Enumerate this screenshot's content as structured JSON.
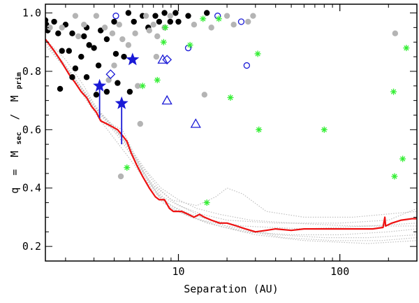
{
  "chart_data": {
    "type": "scatter",
    "title": "",
    "xlabel": "Separation (AU)",
    "ylabel": "q = M_sec / M_prim",
    "ylabel_parts": {
      "q": "q",
      "equals": "=",
      "num": "M",
      "num_sub": "sec",
      "slash": "/",
      "den": "M",
      "den_sub": "prim"
    },
    "x_scale": "log",
    "xlim": [
      1.5,
      300
    ],
    "ylim": [
      0.15,
      1.03
    ],
    "x_tick_labels": [
      {
        "value": 10,
        "label": "10"
      },
      {
        "value": 100,
        "label": "100"
      }
    ],
    "y_tick_labels": [
      {
        "value": 0.2,
        "label": "0.2"
      },
      {
        "value": 0.4,
        "label": "0.4"
      },
      {
        "value": 0.6,
        "label": "0.6"
      },
      {
        "value": 0.8,
        "label": "0.8"
      },
      {
        "value": 1.0,
        "label": "1.0"
      }
    ],
    "colors": {
      "black_points": "#000000",
      "gray_points": "#b4b4b4",
      "green_stars": "#33ee33",
      "blue": "#1a1ad6",
      "red_curve": "#ee1111",
      "gray_curves": "#c0c0c0"
    },
    "series": [
      {
        "name": "black-filled-circles",
        "marker": "filled-circle",
        "color": "black_points",
        "points": [
          [
            1.5,
            0.975
          ],
          [
            1.52,
            0.96
          ],
          [
            1.55,
            0.94
          ],
          [
            1.8,
            0.93
          ],
          [
            1.9,
            0.87
          ],
          [
            2.0,
            0.96
          ],
          [
            2.1,
            0.87
          ],
          [
            2.2,
            0.93
          ],
          [
            2.3,
            0.81
          ],
          [
            2.5,
            0.85
          ],
          [
            2.6,
            0.92
          ],
          [
            2.7,
            0.95
          ],
          [
            2.8,
            0.89
          ],
          [
            3.0,
            0.88
          ],
          [
            3.2,
            0.82
          ],
          [
            3.3,
            0.94
          ],
          [
            3.6,
            0.91
          ],
          [
            4.0,
            0.97
          ],
          [
            4.2,
            0.76
          ],
          [
            4.6,
            0.85
          ],
          [
            4.9,
            1.0
          ],
          [
            5.3,
            0.97
          ],
          [
            6.0,
            0.99
          ],
          [
            6.5,
            0.95
          ],
          [
            7.2,
            0.99
          ],
          [
            7.6,
            0.97
          ],
          [
            8.2,
            1.0
          ],
          [
            8.9,
            0.97
          ],
          [
            9.6,
            1.0
          ],
          [
            10.0,
            0.97
          ],
          [
            11.5,
            0.99
          ],
          [
            15.0,
            1.0
          ],
          [
            1.85,
            0.74
          ],
          [
            2.2,
            0.78
          ],
          [
            3.1,
            0.72
          ],
          [
            3.6,
            0.73
          ],
          [
            4.1,
            0.86
          ],
          [
            5.0,
            0.73
          ],
          [
            1.7,
            0.97
          ],
          [
            2.7,
            0.78
          ]
        ]
      },
      {
        "name": "gray-filled-circles",
        "marker": "filled-circle",
        "color": "gray_points",
        "points": [
          [
            1.6,
            0.95
          ],
          [
            1.9,
            0.95
          ],
          [
            2.3,
            0.99
          ],
          [
            2.6,
            0.96
          ],
          [
            3.1,
            0.99
          ],
          [
            3.5,
            0.95
          ],
          [
            3.9,
            0.93
          ],
          [
            4.3,
            0.96
          ],
          [
            4.5,
            0.91
          ],
          [
            4.9,
            0.89
          ],
          [
            5.4,
            0.93
          ],
          [
            5.6,
            0.75
          ],
          [
            6.3,
            0.99
          ],
          [
            6.6,
            0.94
          ],
          [
            7.0,
            0.96
          ],
          [
            7.4,
            0.92
          ],
          [
            8.2,
            0.95
          ],
          [
            8.9,
            0.99
          ],
          [
            12.5,
            0.96
          ],
          [
            14.5,
            0.72
          ],
          [
            16.0,
            0.95
          ],
          [
            20.0,
            0.99
          ],
          [
            22.0,
            0.96
          ],
          [
            27.0,
            0.97
          ],
          [
            29.0,
            0.99
          ],
          [
            3.7,
            0.77
          ],
          [
            4.4,
            0.44
          ],
          [
            5.8,
            0.62
          ],
          [
            7.3,
            0.85
          ],
          [
            220.0,
            0.93
          ],
          [
            4.0,
            0.82
          ],
          [
            2.4,
            0.92
          ]
        ]
      },
      {
        "name": "blue-open-circles",
        "marker": "open-circle",
        "color": "blue",
        "points": [
          [
            4.1,
            0.99
          ],
          [
            11.5,
            0.88
          ],
          [
            17.5,
            0.99
          ],
          [
            24.5,
            0.97
          ],
          [
            26.5,
            0.82
          ]
        ]
      },
      {
        "name": "blue-open-diamonds",
        "marker": "open-diamond",
        "color": "blue",
        "points": [
          [
            3.8,
            0.79
          ],
          [
            8.5,
            0.84
          ]
        ]
      },
      {
        "name": "blue-open-triangles",
        "marker": "open-triangle",
        "color": "blue",
        "points": [
          [
            8.0,
            0.84
          ],
          [
            8.5,
            0.7
          ],
          [
            12.8,
            0.62
          ]
        ]
      },
      {
        "name": "green-asterisks",
        "marker": "asterisk",
        "color": "green_stars",
        "points": [
          [
            14.2,
            0.98
          ],
          [
            17.8,
            0.98
          ],
          [
            11.8,
            0.89
          ],
          [
            8.1,
            0.9
          ],
          [
            7.4,
            0.77
          ],
          [
            6.0,
            0.75
          ],
          [
            8.3,
            0.95
          ],
          [
            31.0,
            0.86
          ],
          [
            21.0,
            0.71
          ],
          [
            31.5,
            0.6
          ],
          [
            80.0,
            0.6
          ],
          [
            15.0,
            0.35
          ],
          [
            4.8,
            0.47
          ],
          [
            215.0,
            0.73
          ],
          [
            258.0,
            0.88
          ],
          [
            245.0,
            0.5
          ],
          [
            218.0,
            0.44
          ]
        ]
      },
      {
        "name": "blue-filled-stars",
        "marker": "filled-star",
        "color": "blue",
        "points": [
          [
            3.25,
            0.75
          ],
          [
            4.45,
            0.69
          ],
          [
            5.2,
            0.84
          ]
        ]
      }
    ],
    "error_bars": [
      {
        "x": 3.25,
        "y_low": 0.64,
        "y_high": 0.75
      },
      {
        "x": 4.45,
        "y_low": 0.55,
        "y_high": 0.69
      }
    ],
    "red_curve": [
      [
        1.5,
        0.91
      ],
      [
        1.7,
        0.87
      ],
      [
        1.9,
        0.83
      ],
      [
        2.1,
        0.79
      ],
      [
        2.3,
        0.76
      ],
      [
        2.5,
        0.73
      ],
      [
        2.7,
        0.71
      ],
      [
        2.9,
        0.68
      ],
      [
        3.1,
        0.66
      ],
      [
        3.3,
        0.63
      ],
      [
        3.6,
        0.62
      ],
      [
        3.9,
        0.61
      ],
      [
        4.2,
        0.6
      ],
      [
        4.5,
        0.58
      ],
      [
        4.8,
        0.56
      ],
      [
        5.1,
        0.52
      ],
      [
        5.5,
        0.48
      ],
      [
        6.0,
        0.44
      ],
      [
        6.6,
        0.4
      ],
      [
        7.2,
        0.37
      ],
      [
        7.6,
        0.36
      ],
      [
        8.2,
        0.36
      ],
      [
        8.8,
        0.33
      ],
      [
        9.3,
        0.32
      ],
      [
        10.5,
        0.32
      ],
      [
        11.5,
        0.31
      ],
      [
        12.5,
        0.3
      ],
      [
        13.5,
        0.31
      ],
      [
        14.5,
        0.3
      ],
      [
        16.0,
        0.29
      ],
      [
        18.0,
        0.28
      ],
      [
        20.0,
        0.28
      ],
      [
        23.0,
        0.27
      ],
      [
        26.0,
        0.26
      ],
      [
        30.0,
        0.25
      ],
      [
        35.0,
        0.255
      ],
      [
        40.0,
        0.26
      ],
      [
        50.0,
        0.255
      ],
      [
        60.0,
        0.26
      ],
      [
        80.0,
        0.26
      ],
      [
        100.0,
        0.26
      ],
      [
        130.0,
        0.26
      ],
      [
        160.0,
        0.26
      ],
      [
        185.0,
        0.265
      ],
      [
        190.0,
        0.3
      ],
      [
        192.0,
        0.27
      ],
      [
        210.0,
        0.28
      ],
      [
        240.0,
        0.29
      ],
      [
        280.0,
        0.295
      ],
      [
        300.0,
        0.295
      ]
    ],
    "gray_curves": [
      [
        [
          1.5,
          0.9
        ],
        [
          2.0,
          0.82
        ],
        [
          2.5,
          0.74
        ],
        [
          3.0,
          0.67
        ],
        [
          3.5,
          0.62
        ],
        [
          4.0,
          0.6
        ],
        [
          4.6,
          0.57
        ],
        [
          5.2,
          0.52
        ],
        [
          6.0,
          0.46
        ],
        [
          7.0,
          0.4
        ],
        [
          8.0,
          0.35
        ],
        [
          10.0,
          0.32
        ],
        [
          14.0,
          0.29
        ],
        [
          20.0,
          0.27
        ],
        [
          40.0,
          0.24
        ],
        [
          80.0,
          0.23
        ],
        [
          150.0,
          0.23
        ],
        [
          300.0,
          0.24
        ]
      ],
      [
        [
          1.5,
          0.91
        ],
        [
          2.0,
          0.84
        ],
        [
          2.6,
          0.75
        ],
        [
          3.2,
          0.66
        ],
        [
          3.8,
          0.62
        ],
        [
          4.5,
          0.6
        ],
        [
          5.5,
          0.5
        ],
        [
          6.5,
          0.43
        ],
        [
          8.0,
          0.37
        ],
        [
          10.0,
          0.34
        ],
        [
          14.0,
          0.31
        ],
        [
          20.0,
          0.29
        ],
        [
          40.0,
          0.28
        ],
        [
          100.0,
          0.28
        ],
        [
          200.0,
          0.29
        ],
        [
          300.0,
          0.33
        ]
      ],
      [
        [
          1.6,
          0.88
        ],
        [
          2.2,
          0.78
        ],
        [
          2.8,
          0.7
        ],
        [
          3.4,
          0.64
        ],
        [
          4.2,
          0.58
        ],
        [
          5.0,
          0.52
        ],
        [
          6.0,
          0.45
        ],
        [
          7.5,
          0.38
        ],
        [
          9.0,
          0.34
        ],
        [
          12.0,
          0.31
        ],
        [
          16.0,
          0.29
        ],
        [
          25.0,
          0.27
        ],
        [
          60.0,
          0.26
        ],
        [
          150.0,
          0.27
        ],
        [
          300.0,
          0.28
        ]
      ],
      [
        [
          1.5,
          0.89
        ],
        [
          2.0,
          0.81
        ],
        [
          2.7,
          0.7
        ],
        [
          3.3,
          0.63
        ],
        [
          4.0,
          0.57
        ],
        [
          5.0,
          0.5
        ],
        [
          6.0,
          0.44
        ],
        [
          7.0,
          0.39
        ],
        [
          9.0,
          0.33
        ],
        [
          12.0,
          0.3
        ],
        [
          18.0,
          0.27
        ],
        [
          30.0,
          0.24
        ],
        [
          60.0,
          0.22
        ],
        [
          150.0,
          0.21
        ],
        [
          300.0,
          0.22
        ]
      ],
      [
        [
          1.7,
          0.86
        ],
        [
          2.3,
          0.77
        ],
        [
          3.0,
          0.68
        ],
        [
          3.8,
          0.62
        ],
        [
          4.6,
          0.56
        ],
        [
          5.6,
          0.48
        ],
        [
          7.0,
          0.41
        ],
        [
          9.0,
          0.36
        ],
        [
          13.0,
          0.34
        ],
        [
          17.0,
          0.37
        ],
        [
          20.0,
          0.4
        ],
        [
          25.0,
          0.38
        ],
        [
          35.0,
          0.32
        ],
        [
          60.0,
          0.3
        ],
        [
          120.0,
          0.3
        ],
        [
          300.0,
          0.32
        ]
      ],
      [
        [
          1.5,
          0.9
        ],
        [
          2.1,
          0.8
        ],
        [
          2.9,
          0.7
        ],
        [
          3.6,
          0.63
        ],
        [
          4.4,
          0.58
        ],
        [
          5.4,
          0.5
        ],
        [
          6.5,
          0.42
        ],
        [
          8.0,
          0.36
        ],
        [
          11.0,
          0.31
        ],
        [
          15.0,
          0.28
        ],
        [
          25.0,
          0.25
        ],
        [
          50.0,
          0.24
        ],
        [
          100.0,
          0.24
        ],
        [
          200.0,
          0.25
        ],
        [
          300.0,
          0.26
        ]
      ],
      [
        [
          1.8,
          0.84
        ],
        [
          2.4,
          0.76
        ],
        [
          3.1,
          0.67
        ],
        [
          3.9,
          0.61
        ],
        [
          4.8,
          0.55
        ],
        [
          6.0,
          0.47
        ],
        [
          7.5,
          0.4
        ],
        [
          9.5,
          0.35
        ],
        [
          14.0,
          0.3
        ],
        [
          22.0,
          0.26
        ],
        [
          45.0,
          0.23
        ],
        [
          90.0,
          0.22
        ],
        [
          180.0,
          0.22
        ],
        [
          300.0,
          0.23
        ]
      ],
      [
        [
          1.6,
          0.89
        ],
        [
          2.2,
          0.79
        ],
        [
          2.9,
          0.69
        ],
        [
          3.7,
          0.63
        ],
        [
          4.5,
          0.58
        ],
        [
          5.3,
          0.52
        ],
        [
          6.3,
          0.46
        ],
        [
          7.8,
          0.4
        ],
        [
          10.0,
          0.36
        ],
        [
          13.0,
          0.33
        ],
        [
          18.0,
          0.31
        ],
        [
          28.0,
          0.29
        ],
        [
          50.0,
          0.28
        ],
        [
          120.0,
          0.27
        ],
        [
          300.0,
          0.27
        ]
      ]
    ]
  }
}
